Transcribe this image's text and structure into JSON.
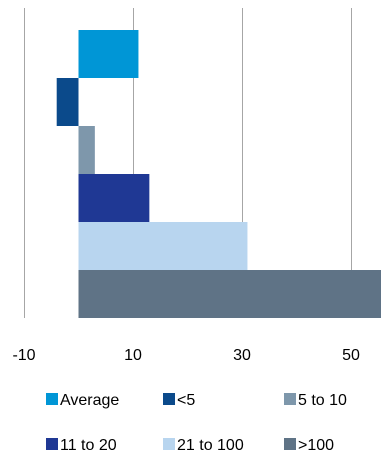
{
  "chart_data": {
    "type": "bar",
    "orientation": "horizontal",
    "title": "",
    "xlabel": "",
    "ylabel": "",
    "xlim": [
      -10,
      55
    ],
    "x_ticks": [
      -10,
      10,
      30,
      50
    ],
    "grid": true,
    "legend_position": "bottom",
    "series": [
      {
        "name": "Average",
        "value": 11,
        "color": "#0096d6"
      },
      {
        "name": "<5",
        "value": -4,
        "color": "#0b4a8b"
      },
      {
        "name": "5 to 10",
        "value": 3,
        "color": "#7e97ab"
      },
      {
        "name": "11 to 20",
        "value": 13,
        "color": "#1f3894"
      },
      {
        "name": "21 to 100",
        "value": 31,
        "color": "#b8d5ef"
      },
      {
        "name": ">100",
        "value": 56,
        "color": "#5f7386"
      }
    ]
  }
}
